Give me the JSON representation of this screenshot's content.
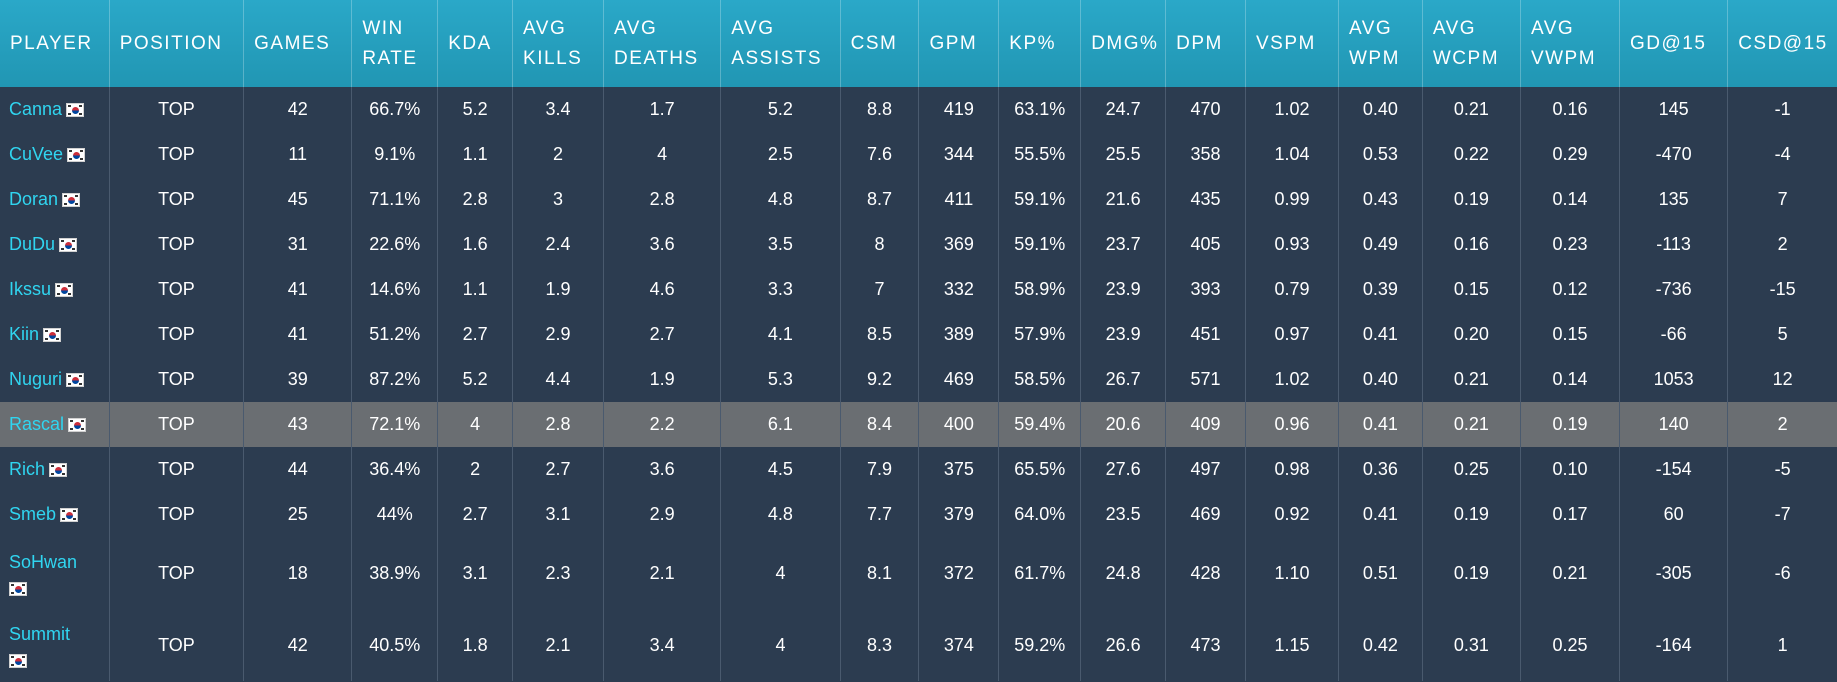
{
  "columns": [
    "PLAYER",
    "POSITION",
    "GAMES",
    "WIN RATE",
    "KDA",
    "AVG KILLS",
    "AVG DEATHS",
    "AVG ASSISTS",
    "CSM",
    "GPM",
    "KP%",
    "DMG%",
    "DPM",
    "VSPM",
    "AVG WPM",
    "AVG WCPM",
    "AVG VWPM",
    "GD@15",
    "CSD@15"
  ],
  "header_lines": [
    [
      "PLAYER"
    ],
    [
      "POSITION"
    ],
    [
      "GAMES"
    ],
    [
      "WIN",
      "RATE"
    ],
    [
      "KDA"
    ],
    [
      "AVG",
      "KILLS"
    ],
    [
      "AVG",
      "DEATHS"
    ],
    [
      "AVG",
      "ASSISTS"
    ],
    [
      "CSM"
    ],
    [
      "GPM"
    ],
    [
      "KP%"
    ],
    [
      "DMG%"
    ],
    [
      "DPM"
    ],
    [
      "VSPM"
    ],
    [
      "AVG",
      "WPM"
    ],
    [
      "AVG",
      "WCPM"
    ],
    [
      "AVG",
      "VWPM"
    ],
    [
      "GD@15"
    ],
    [
      "CSD@15"
    ]
  ],
  "flag_icon": "south-korea-flag-icon",
  "colors": {
    "header_bg": "#2aa8c8",
    "row_bg": "#2c3c50",
    "highlight_bg": "#6a6e72",
    "player_link": "#30d5f0"
  },
  "highlighted_row": 7,
  "rows": [
    [
      "Canna",
      "TOP",
      "42",
      "66.7%",
      "5.2",
      "3.4",
      "1.7",
      "5.2",
      "8.8",
      "419",
      "63.1%",
      "24.7",
      "470",
      "1.02",
      "0.40",
      "0.21",
      "0.16",
      "145",
      "-1"
    ],
    [
      "CuVee",
      "TOP",
      "11",
      "9.1%",
      "1.1",
      "2",
      "4",
      "2.5",
      "7.6",
      "344",
      "55.5%",
      "25.5",
      "358",
      "1.04",
      "0.53",
      "0.22",
      "0.29",
      "-470",
      "-4"
    ],
    [
      "Doran",
      "TOP",
      "45",
      "71.1%",
      "2.8",
      "3",
      "2.8",
      "4.8",
      "8.7",
      "411",
      "59.1%",
      "21.6",
      "435",
      "0.99",
      "0.43",
      "0.19",
      "0.14",
      "135",
      "7"
    ],
    [
      "DuDu",
      "TOP",
      "31",
      "22.6%",
      "1.6",
      "2.4",
      "3.6",
      "3.5",
      "8",
      "369",
      "59.1%",
      "23.7",
      "405",
      "0.93",
      "0.49",
      "0.16",
      "0.23",
      "-113",
      "2"
    ],
    [
      "Ikssu",
      "TOP",
      "41",
      "14.6%",
      "1.1",
      "1.9",
      "4.6",
      "3.3",
      "7",
      "332",
      "58.9%",
      "23.9",
      "393",
      "0.79",
      "0.39",
      "0.15",
      "0.12",
      "-736",
      "-15"
    ],
    [
      "Kiin",
      "TOP",
      "41",
      "51.2%",
      "2.7",
      "2.9",
      "2.7",
      "4.1",
      "8.5",
      "389",
      "57.9%",
      "23.9",
      "451",
      "0.97",
      "0.41",
      "0.20",
      "0.15",
      "-66",
      "5"
    ],
    [
      "Nuguri",
      "TOP",
      "39",
      "87.2%",
      "5.2",
      "4.4",
      "1.9",
      "5.3",
      "9.2",
      "469",
      "58.5%",
      "26.7",
      "571",
      "1.02",
      "0.40",
      "0.21",
      "0.14",
      "1053",
      "12"
    ],
    [
      "Rascal",
      "TOP",
      "43",
      "72.1%",
      "4",
      "2.8",
      "2.2",
      "6.1",
      "8.4",
      "400",
      "59.4%",
      "20.6",
      "409",
      "0.96",
      "0.41",
      "0.21",
      "0.19",
      "140",
      "2"
    ],
    [
      "Rich",
      "TOP",
      "44",
      "36.4%",
      "2",
      "2.7",
      "3.6",
      "4.5",
      "7.9",
      "375",
      "65.5%",
      "27.6",
      "497",
      "0.98",
      "0.36",
      "0.25",
      "0.10",
      "-154",
      "-5"
    ],
    [
      "Smeb",
      "TOP",
      "25",
      "44%",
      "2.7",
      "3.1",
      "2.9",
      "4.8",
      "7.7",
      "379",
      "64.0%",
      "23.5",
      "469",
      "0.92",
      "0.41",
      "0.19",
      "0.17",
      "60",
      "-7"
    ],
    [
      "SoHwan",
      "TOP",
      "18",
      "38.9%",
      "3.1",
      "2.3",
      "2.1",
      "4",
      "8.1",
      "372",
      "61.7%",
      "24.8",
      "428",
      "1.10",
      "0.51",
      "0.19",
      "0.21",
      "-305",
      "-6"
    ],
    [
      "Summit",
      "TOP",
      "42",
      "40.5%",
      "1.8",
      "2.1",
      "3.4",
      "4",
      "8.3",
      "374",
      "59.2%",
      "26.6",
      "473",
      "1.15",
      "0.42",
      "0.31",
      "0.25",
      "-164",
      "1"
    ]
  ],
  "wrapped_rows": [
    10,
    11
  ]
}
